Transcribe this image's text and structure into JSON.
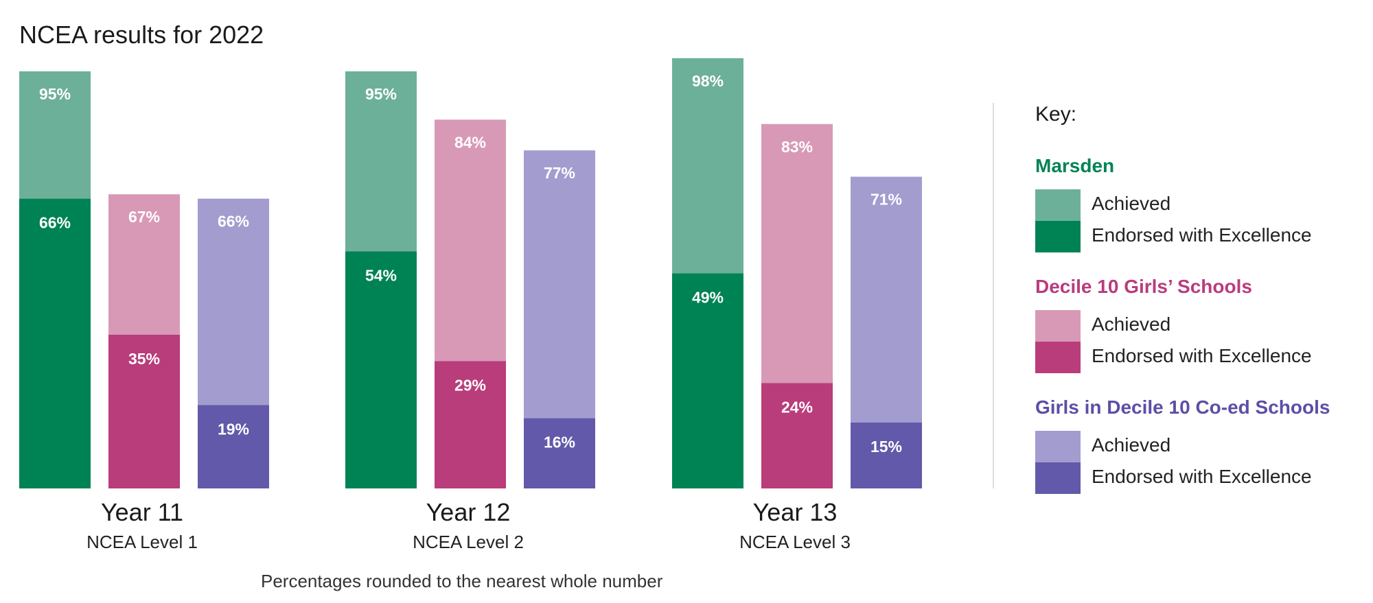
{
  "chart_data": {
    "type": "bar",
    "title": "NCEA results for 2022",
    "footnote": "Percentages rounded to the nearest whole number",
    "categories": [
      {
        "name": "Year 11",
        "sub": "NCEA Level 1"
      },
      {
        "name": "Year 12",
        "sub": "NCEA Level 2"
      },
      {
        "name": "Year 13",
        "sub": "NCEA Level 3"
      }
    ],
    "ylim": [
      0,
      100
    ],
    "series": [
      {
        "name": "Marsden",
        "achieved": [
          95,
          95,
          98
        ],
        "excellence": [
          66,
          54,
          49
        ],
        "color_achieved": "#6db09a",
        "color_excellence": "#008354",
        "color_title": "#008354"
      },
      {
        "name": "Decile 10 Girls’ Schools",
        "achieved": [
          67,
          84,
          83
        ],
        "excellence": [
          35,
          29,
          24
        ],
        "color_achieved": "#d899b6",
        "color_excellence": "#b93c7b",
        "color_title": "#b93c7b"
      },
      {
        "name": "Girls in Decile 10 Co-ed Schools",
        "achieved": [
          66,
          77,
          71
        ],
        "excellence": [
          19,
          16,
          15
        ],
        "color_achieved": "#a39ccf",
        "color_excellence": "#6259aa",
        "color_title": "#5b4fa6"
      }
    ],
    "key_title": "Key:",
    "achieved_label": "Achieved",
    "excellence_label": "Endorsed with Excellence"
  }
}
